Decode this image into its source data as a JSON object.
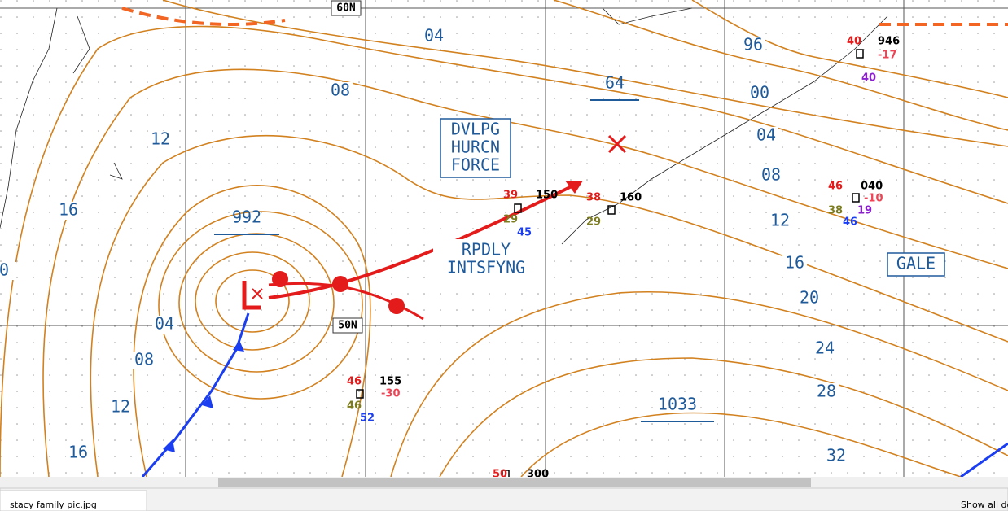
{
  "map": {
    "latitude_labels": [
      "60N",
      "50N"
    ],
    "isobar_labels": [
      "04",
      "08",
      "12",
      "16",
      "04",
      "08",
      "12",
      "16",
      "96",
      "00",
      "04",
      "08",
      "12",
      "16",
      "20",
      "24",
      "28",
      "32",
      "0"
    ],
    "pressure_centers": [
      "992",
      "1033",
      "64"
    ],
    "annotations": [
      [
        "DVLPG",
        "HURCN",
        "FORCE"
      ],
      [
        "RPDLY",
        "INTSFYNG"
      ],
      [
        "GALE"
      ]
    ],
    "stations": [
      [
        "40",
        "946",
        "-17",
        "40"
      ],
      [
        "46",
        "040",
        "-10",
        "38",
        "19",
        "46"
      ],
      [
        "39",
        "150",
        "29",
        "45"
      ],
      [
        "38",
        "160",
        "29"
      ],
      [
        "46",
        "155",
        "-30",
        "46",
        "52"
      ],
      [
        "50",
        "300"
      ]
    ]
  },
  "taskbar": {
    "download_item": "stacy family pic.jpg",
    "show_all": "Show all do"
  }
}
